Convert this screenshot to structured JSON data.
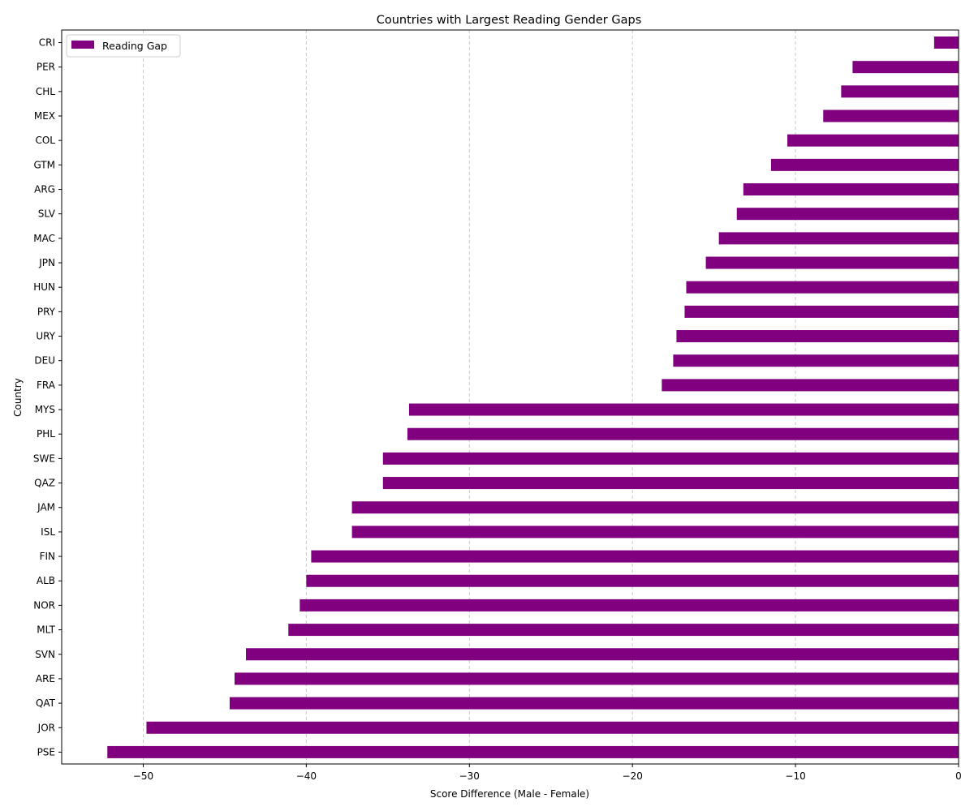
{
  "chart_data": {
    "type": "bar",
    "orientation": "horizontal",
    "title": "Countries with Largest Reading Gender Gaps",
    "xlabel": "Score Difference (Male - Female)",
    "ylabel": "Country",
    "xlim": [
      -55,
      0
    ],
    "xticks": [
      -50,
      -40,
      -30,
      -20,
      -10,
      0
    ],
    "xtick_labels": [
      "−50",
      "−40",
      "−30",
      "−20",
      "−10",
      "0"
    ],
    "grid": "x-dashed",
    "legend_position": "upper-left",
    "bar_color": "#800080",
    "categories": [
      "CRI",
      "PER",
      "CHL",
      "MEX",
      "COL",
      "GTM",
      "ARG",
      "SLV",
      "MAC",
      "JPN",
      "HUN",
      "PRY",
      "URY",
      "DEU",
      "FRA",
      "MYS",
      "PHL",
      "SWE",
      "QAZ",
      "JAM",
      "ISL",
      "FIN",
      "ALB",
      "NOR",
      "MLT",
      "SVN",
      "ARE",
      "QAT",
      "JOR",
      "PSE"
    ],
    "series": [
      {
        "name": "Reading Gap",
        "values": [
          -1.5,
          -6.5,
          -7.2,
          -8.3,
          -10.5,
          -11.5,
          -13.2,
          -13.6,
          -14.7,
          -15.5,
          -16.7,
          -16.8,
          -17.3,
          -17.5,
          -18.2,
          -33.7,
          -33.8,
          -35.3,
          -35.3,
          -37.2,
          -37.2,
          -39.7,
          -40.0,
          -40.4,
          -41.1,
          -43.7,
          -44.4,
          -44.7,
          -49.8,
          -52.2
        ]
      }
    ]
  }
}
